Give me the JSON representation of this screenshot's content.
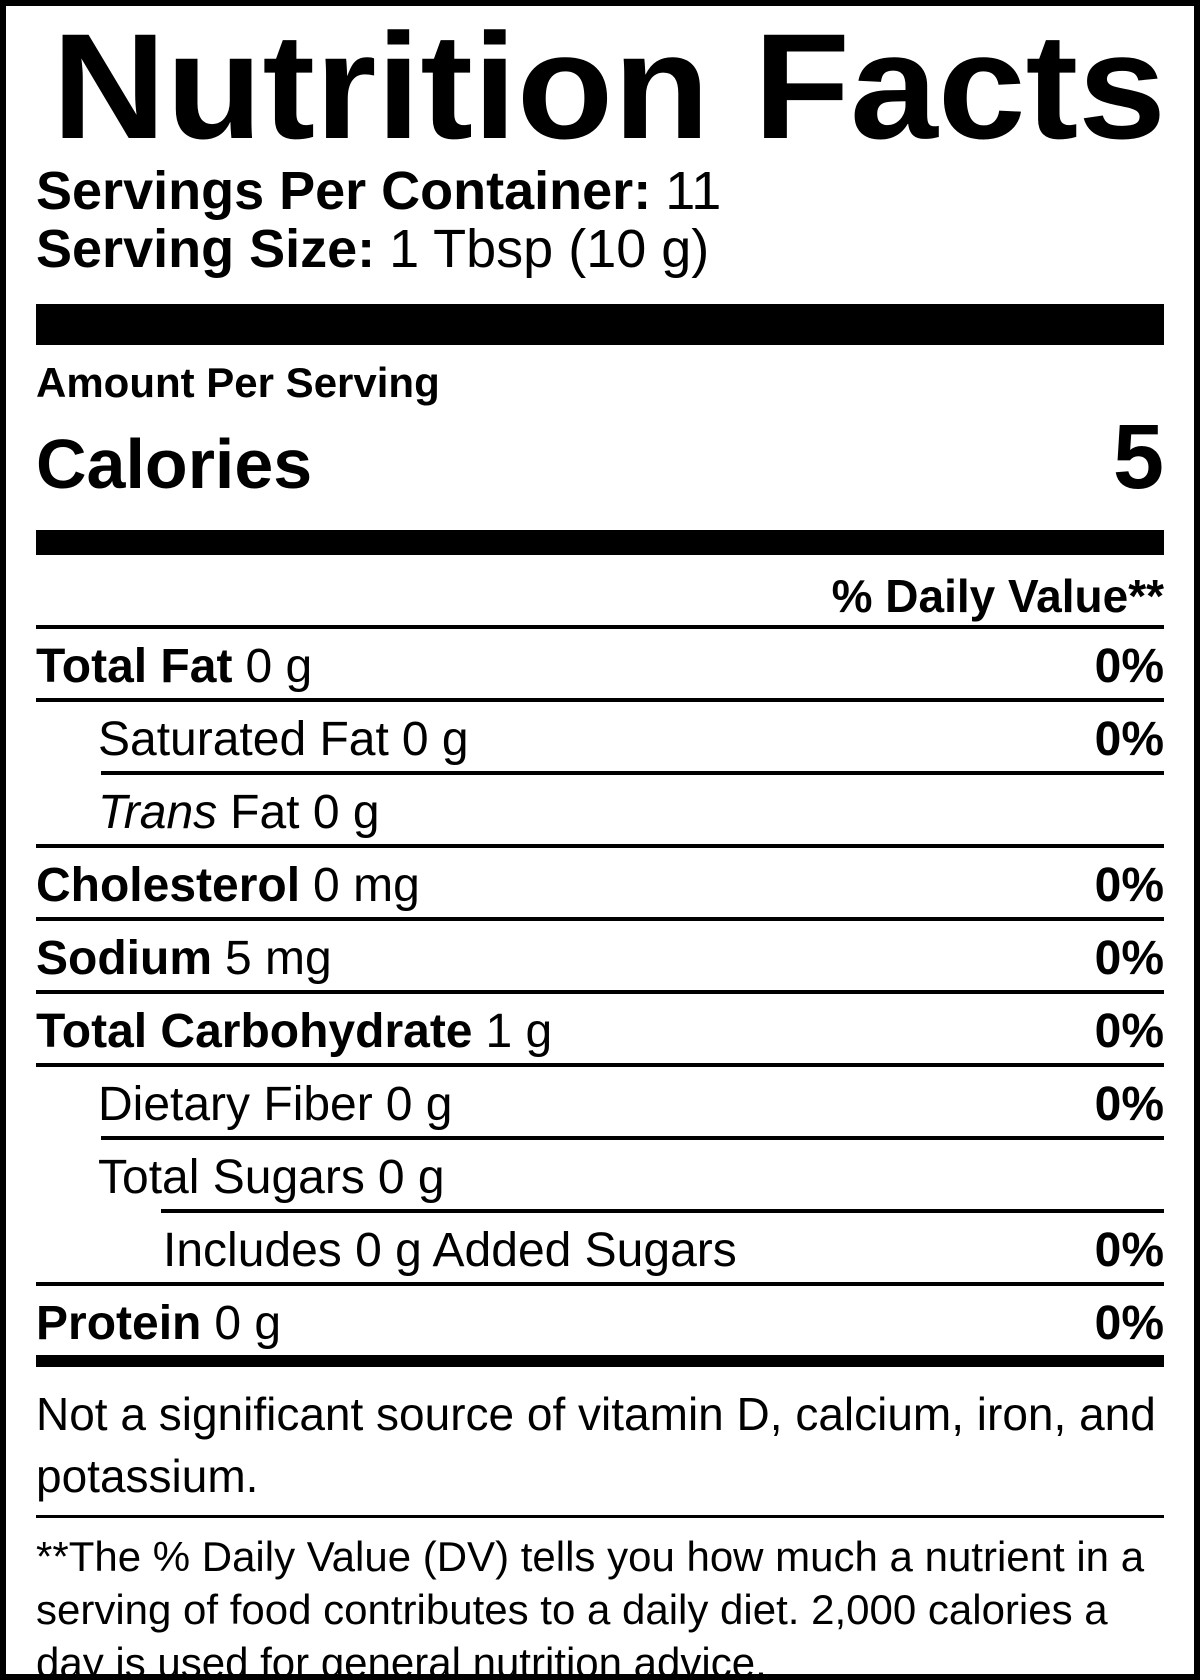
{
  "label": {
    "title": "Nutrition Facts",
    "servings_per_container": {
      "label": "Servings Per Container:",
      "value": "11"
    },
    "serving_size": {
      "label": "Serving Size:",
      "value": "1 Tbsp (10 g)"
    },
    "amount_per_serving": "Amount Per Serving",
    "calories": {
      "label": "Calories",
      "value": "5"
    },
    "daily_value_header": "% Daily Value**",
    "nutrients": [
      {
        "name": "Total Fat",
        "amount": "0 g",
        "dv": "0%"
      },
      {
        "name": "Saturated Fat",
        "amount": "0 g",
        "dv": "0%"
      },
      {
        "name": "Trans",
        "amount": "Fat 0 g",
        "dv": ""
      },
      {
        "name": "Cholesterol",
        "amount": "0 mg",
        "dv": "0%"
      },
      {
        "name": "Sodium",
        "amount": "5 mg",
        "dv": "0%"
      },
      {
        "name": "Total Carbohydrate",
        "amount": "1 g",
        "dv": "0%"
      },
      {
        "name": "Dietary Fiber",
        "amount": "0 g",
        "dv": "0%"
      },
      {
        "name": "Total Sugars",
        "amount": "0 g",
        "dv": ""
      },
      {
        "name": "Includes 0 g Added Sugars",
        "amount": "",
        "dv": "0%"
      },
      {
        "name": "Protein",
        "amount": "0 g",
        "dv": "0%"
      }
    ],
    "not_significant_note": "Not a significant source of vitamin D, calcium, iron, and potassium.",
    "daily_value_footnote": "**The % Daily Value (DV) tells you how much a nutrient in a serving of food contributes to a daily diet. 2,000 calories a day is used for general nutrition advice.",
    "colors": {
      "ink": "#000000",
      "background": "#ffffff"
    }
  }
}
